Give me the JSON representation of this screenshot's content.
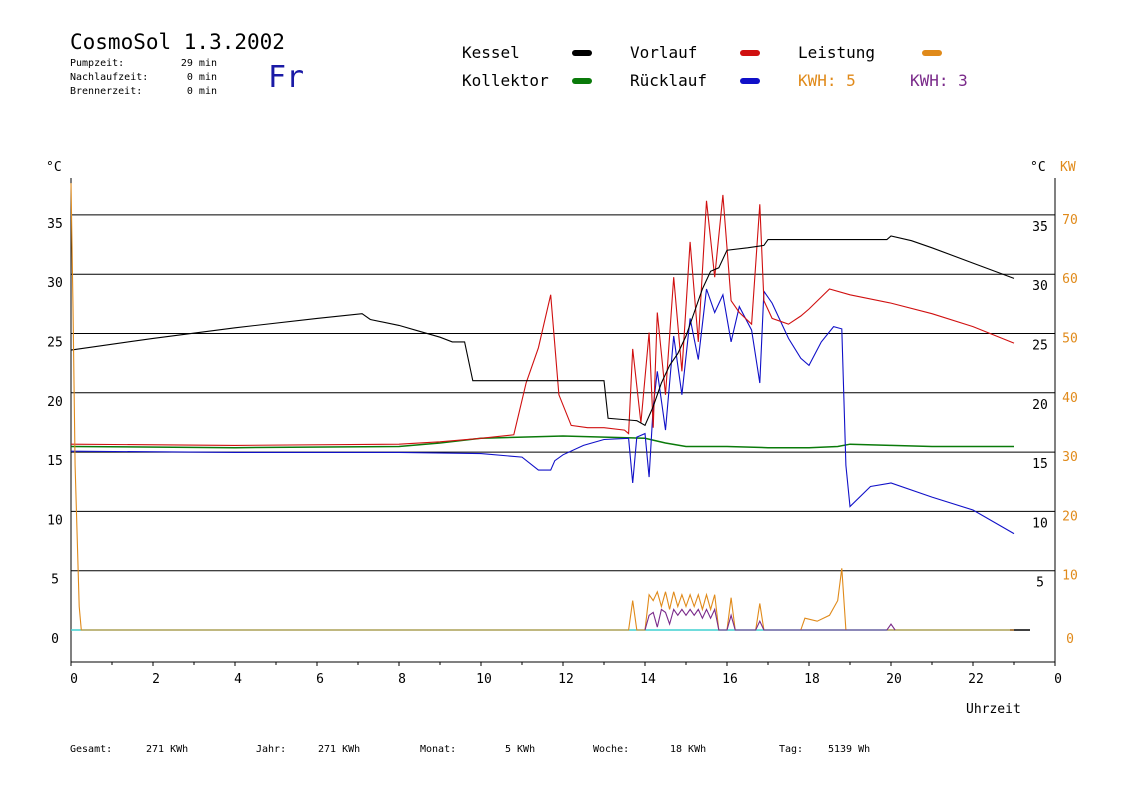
{
  "header": {
    "title": "CosmoSol 1.3.2002",
    "day": "Fr",
    "stats": [
      {
        "label": "Pumpzeit:",
        "value": "29 min"
      },
      {
        "label": "Nachlaufzeit:",
        "value": "0 min"
      },
      {
        "label": "Brennerzeit:",
        "value": "0 min"
      }
    ]
  },
  "legend": {
    "kessel": "Kessel",
    "kollektor": "Kollektor",
    "vorlauf": "Vorlauf",
    "ruecklauf": "Rücklauf",
    "leistung": "Leistung",
    "kwh1": "KWH: 5",
    "kwh2": "KWH: 3"
  },
  "axes": {
    "left_unit": "°C",
    "right_unit_temp": "°C",
    "right_unit_power": "KW",
    "xlabel": "Uhrzeit"
  },
  "footer": [
    {
      "label": "Gesamt:",
      "value": "271 KWh"
    },
    {
      "label": "Jahr:",
      "value": "271 KWh"
    },
    {
      "label": "Monat:",
      "value": "5 KWh"
    },
    {
      "label": "Woche:",
      "value": "18 KWh"
    },
    {
      "label": "Tag:",
      "value": "5139 Wh"
    }
  ],
  "colors": {
    "kessel": "#000000",
    "kollektor": "#0a7a0a",
    "vorlauf": "#d01010",
    "ruecklauf": "#1010c8",
    "leistung": "#e08a1a",
    "kwh2": "#7a2a8a",
    "baseline": "#40d0d0"
  },
  "chart_data": {
    "type": "line",
    "xlim": [
      0,
      24
    ],
    "ylim": [
      0,
      38
    ],
    "y2lim": [
      0,
      76
    ],
    "x_ticks": [
      "0",
      "2",
      "4",
      "6",
      "8",
      "10",
      "12",
      "14",
      "16",
      "18",
      "20",
      "22",
      "0"
    ],
    "y_ticks": [
      "0",
      "5",
      "10",
      "15",
      "20",
      "25",
      "30",
      "35"
    ],
    "y_right_ticks": [
      "5",
      "10",
      "15",
      "20",
      "25",
      "30",
      "35"
    ],
    "y2_ticks": [
      "0",
      "10",
      "20",
      "30",
      "40",
      "50",
      "60",
      "70"
    ],
    "grid": true,
    "series": [
      {
        "name": "Kessel",
        "key": "kessel",
        "axis": "y",
        "x": [
          0,
          2,
          4,
          6,
          7.1,
          7.3,
          8,
          8.5,
          9,
          9.3,
          9.6,
          9.8,
          10,
          12,
          13,
          13.1,
          13.8,
          14,
          14.2,
          14.4,
          14.6,
          14.8,
          15,
          15.2,
          15.4,
          15.6,
          15.8,
          16,
          16.5,
          16.9,
          17,
          18,
          19,
          19.9,
          20,
          20.5,
          21,
          22,
          23
        ],
        "y": [
          23.8,
          24.8,
          25.7,
          26.5,
          26.9,
          26.4,
          25.9,
          25.4,
          24.9,
          24.5,
          24.5,
          21.2,
          21.2,
          21.2,
          21.2,
          18.0,
          17.8,
          17.4,
          19,
          21,
          22.5,
          23.5,
          25,
          27,
          29,
          30.5,
          30.8,
          32.3,
          32.5,
          32.7,
          33.2,
          33.2,
          33.2,
          33.2,
          33.5,
          33.1,
          32.5,
          31.2,
          29.9
        ]
      },
      {
        "name": "Kollektor",
        "key": "kollektor",
        "axis": "y",
        "x": [
          0,
          4,
          8,
          9,
          10,
          11,
          12,
          13,
          14,
          14.5,
          15,
          16,
          17,
          18,
          18.7,
          19,
          20,
          21,
          22,
          23
        ],
        "y": [
          15.6,
          15.5,
          15.6,
          15.9,
          16.3,
          16.4,
          16.5,
          16.4,
          16.3,
          15.9,
          15.6,
          15.6,
          15.5,
          15.5,
          15.6,
          15.8,
          15.7,
          15.6,
          15.6,
          15.6
        ],
        "raw": true
      },
      {
        "name": "Vorlauf",
        "key": "vorlauf",
        "axis": "y",
        "x": [
          0,
          4,
          8,
          9,
          10,
          10.8,
          11.1,
          11.4,
          11.7,
          11.9,
          12.2,
          12.6,
          13,
          13.5,
          13.6,
          13.7,
          13.9,
          14.1,
          14.2,
          14.3,
          14.5,
          14.7,
          14.9,
          15.1,
          15.3,
          15.5,
          15.7,
          15.9,
          16.1,
          16.3,
          16.6,
          16.8,
          16.9,
          17.1,
          17.5,
          17.8,
          18,
          18.5,
          19,
          20,
          21,
          22,
          23
        ],
        "y": [
          15.8,
          15.7,
          15.8,
          16,
          16.3,
          16.6,
          21,
          24,
          28.5,
          20,
          17.4,
          17.2,
          17.2,
          17.0,
          16.7,
          23.9,
          17.6,
          25.3,
          17.2,
          27,
          20,
          30,
          22,
          33,
          24.5,
          36.5,
          30,
          37,
          28,
          27,
          26,
          36.2,
          28,
          26.5,
          26,
          26.7,
          27.3,
          29.0,
          28.5,
          27.8,
          26.9,
          25.8,
          24.4
        ]
      },
      {
        "name": "Rücklauf",
        "key": "ruecklauf",
        "axis": "y",
        "x": [
          0,
          4,
          8,
          10,
          11,
          11.4,
          11.7,
          11.8,
          12,
          12.5,
          13,
          13.6,
          13.7,
          13.8,
          14,
          14.1,
          14.2,
          14.3,
          14.5,
          14.7,
          14.9,
          15.1,
          15.3,
          15.5,
          15.7,
          15.9,
          16.1,
          16.3,
          16.6,
          16.8,
          16.9,
          17.1,
          17.5,
          17.8,
          18,
          18.3,
          18.6,
          18.8,
          18.9,
          19,
          19.5,
          20,
          21,
          22,
          23
        ],
        "y": [
          15.2,
          15.1,
          15.1,
          15.0,
          14.7,
          13.6,
          13.6,
          14.4,
          14.9,
          15.7,
          16.2,
          16.3,
          12.5,
          16.4,
          16.7,
          13,
          19,
          22,
          17,
          25,
          20,
          26.5,
          23,
          29,
          27,
          28.5,
          24.5,
          27.5,
          25.5,
          21,
          28.8,
          27.8,
          24.8,
          23.1,
          22.5,
          24.5,
          25.8,
          25.6,
          14,
          10.5,
          12.2,
          12.5,
          11.3,
          10.2,
          8.2
        ]
      },
      {
        "name": "Leistung",
        "key": "leistung",
        "axis": "y2",
        "x": [
          0,
          0.05,
          0.1,
          0.2,
          0.25,
          13.6,
          13.7,
          13.8,
          14,
          14.1,
          14.2,
          14.3,
          14.4,
          14.5,
          14.6,
          14.7,
          14.8,
          14.9,
          15,
          15.1,
          15.2,
          15.3,
          15.4,
          15.5,
          15.6,
          15.7,
          15.8,
          16,
          16.1,
          16.2,
          16.3,
          16.7,
          16.8,
          16.9,
          17.8,
          17.9,
          18.2,
          18.5,
          18.7,
          18.8,
          18.9,
          23
        ],
        "y": [
          76,
          55,
          28,
          4,
          0,
          0,
          5,
          0,
          0,
          6,
          5,
          6.5,
          4,
          6.5,
          3.5,
          6.5,
          4,
          6,
          4,
          6,
          4,
          6,
          3.5,
          6,
          3.5,
          6,
          0,
          0,
          5.5,
          0,
          0,
          0,
          4.5,
          0,
          0,
          2,
          1.5,
          2.5,
          5,
          10.5,
          0,
          0
        ]
      },
      {
        "name": "KWH: 3",
        "key": "kwh2",
        "axis": "y2",
        "x": [
          14,
          14.1,
          14.2,
          14.3,
          14.4,
          14.5,
          14.6,
          14.7,
          14.8,
          14.9,
          15,
          15.1,
          15.2,
          15.3,
          15.4,
          15.5,
          15.6,
          15.7,
          15.8,
          16,
          16.1,
          16.2,
          16.3,
          16.7,
          16.8,
          16.9,
          19.9,
          20,
          20.1
        ],
        "y": [
          0,
          2.5,
          3,
          0.5,
          3.5,
          3,
          1,
          3.5,
          2.5,
          3.5,
          2.5,
          3.5,
          2.5,
          3.5,
          2,
          3.5,
          2,
          3.5,
          0,
          0,
          2.5,
          0,
          0,
          0,
          1.5,
          0,
          0,
          1,
          0
        ]
      }
    ]
  }
}
